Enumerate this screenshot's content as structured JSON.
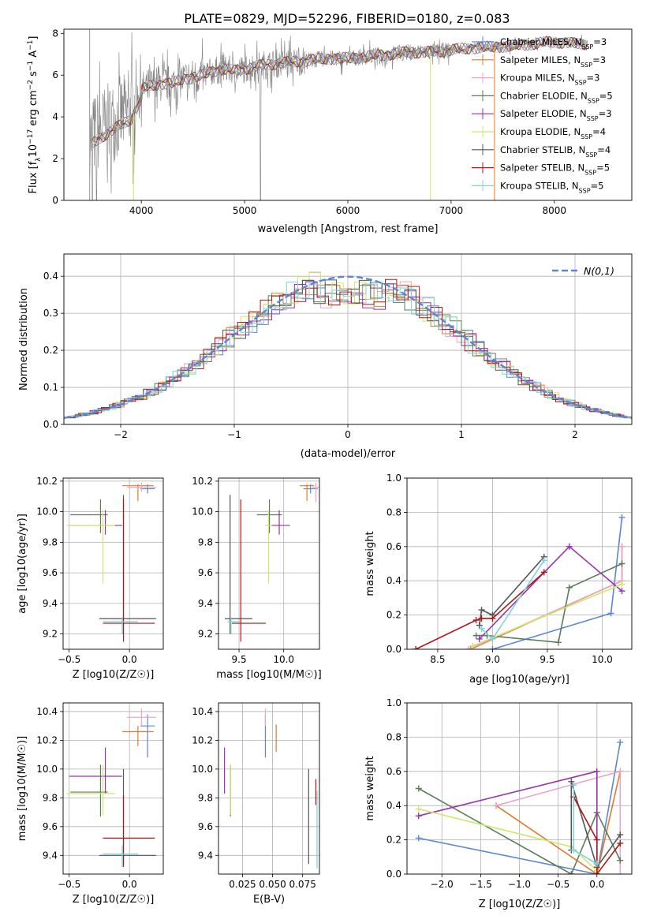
{
  "figure": {
    "title": "PLATE=0829, MJD=52296, FIBERID=0180, z=0.083"
  },
  "colors": {
    "Chabrier MILES": "#5b86d6",
    "Salpeter MILES": "#e07b2a",
    "Kroupa MILES": "#e8a6c9",
    "Chabrier ELODIE": "#5a7d5a",
    "Salpeter ELODIE": "#9a31b0",
    "Kroupa ELODIE": "#cfe86a",
    "Chabrier STELIB": "#555555",
    "Salpeter STELIB": "#b01818",
    "Kroupa STELIB": "#7fd3d8",
    "data": "#808080",
    "gaussian": "#5b86d6"
  },
  "chart_data": [
    {
      "id": "spectrum",
      "type": "line",
      "title": "PLATE=0829, MJD=52296, FIBERID=0180, z=0.083",
      "xlabel": "wavelength [Angstrom, rest frame]",
      "ylabel_parts": [
        "Flux [f",
        "λ",
        "10",
        "−17",
        " erg cm",
        "−2",
        " s",
        "−1",
        " A",
        "−1",
        "]"
      ],
      "xlim": [
        3250,
        8750
      ],
      "ylim": [
        0,
        8.2
      ],
      "xticks": [
        4000,
        5000,
        6000,
        7000,
        8000
      ],
      "yticks": [
        0,
        2,
        4,
        6,
        8
      ],
      "continuum": {
        "x": [
          3500,
          3600,
          3700,
          3800,
          3900,
          4000,
          4100,
          4200,
          4300,
          4400,
          4500,
          4600,
          4700,
          4800,
          4900,
          5000,
          5200,
          5400,
          5600,
          5800,
          6000,
          6200,
          6400,
          6600,
          6800,
          7000,
          7200,
          7400,
          7600,
          7800,
          8000,
          8200,
          8300
        ],
        "y": [
          3.0,
          3.4,
          3.7,
          4.0,
          4.3,
          5.3,
          5.5,
          5.6,
          5.6,
          5.8,
          5.9,
          6.0,
          6.2,
          6.3,
          6.2,
          6.3,
          6.5,
          6.6,
          6.7,
          6.8,
          6.8,
          6.9,
          7.0,
          7.1,
          7.1,
          7.2,
          7.3,
          7.35,
          7.4,
          7.5,
          7.6,
          7.5,
          7.5
        ]
      },
      "legend": [
        {
          "name": "Chabrier MILES",
          "nssp": "3"
        },
        {
          "name": "Salpeter MILES",
          "nssp": "3"
        },
        {
          "name": "Kroupa MILES",
          "nssp": "3"
        },
        {
          "name": "Chabrier ELODIE",
          "nssp": "5"
        },
        {
          "name": "Salpeter ELODIE",
          "nssp": "3"
        },
        {
          "name": "Kroupa ELODIE",
          "nssp": "4"
        },
        {
          "name": "Chabrier STELIB",
          "nssp": "4"
        },
        {
          "name": "Salpeter STELIB",
          "nssp": "5"
        },
        {
          "name": "Kroupa STELIB",
          "nssp": "5"
        }
      ],
      "legend_placement": "right"
    },
    {
      "id": "residuals",
      "type": "histogram",
      "xlabel": "(data-model)/error",
      "ylabel": "Normed distribution",
      "xlim": [
        -2.5,
        2.5
      ],
      "ylim": [
        0,
        0.46
      ],
      "xticks": [
        -2,
        -1,
        0,
        1,
        2
      ],
      "yticks": [
        0.0,
        0.1,
        0.2,
        0.3,
        0.4
      ],
      "grid": true,
      "legend_label": "N(0,1)",
      "legend_placement": "top-right",
      "bin_width": 0.1
    },
    {
      "id": "age-vs-Z",
      "type": "errorbar",
      "xlabel": "Z [log10(Z/Z☉)]",
      "ylabel": "age  [log10(age/yr)]",
      "xlim": [
        -0.55,
        0.28
      ],
      "ylim": [
        9.1,
        10.22
      ],
      "xticks": [
        -0.5,
        0.0
      ],
      "yticks": [
        9.2,
        9.4,
        9.6,
        9.8,
        10.0,
        10.2
      ],
      "grid": true,
      "points": [
        {
          "model": "Chabrier MILES",
          "x": 0.15,
          "xerr": [
            0.06,
            0.06
          ],
          "y": 10.15,
          "yerr": [
            0.03,
            0.03
          ]
        },
        {
          "model": "Salpeter MILES",
          "x": 0.07,
          "xerr": [
            0.13,
            0.13
          ],
          "y": 10.17,
          "yerr": [
            0.1,
            0.01
          ]
        },
        {
          "model": "Kroupa MILES",
          "x": 0.1,
          "xerr": [
            0.12,
            0.12
          ],
          "y": 10.16,
          "yerr": [
            0.03,
            0.03
          ]
        },
        {
          "model": "Chabrier ELODIE",
          "x": -0.24,
          "xerr": [
            0.25,
            0.06
          ],
          "y": 9.98,
          "yerr": [
            0.12,
            0.1
          ]
        },
        {
          "model": "Salpeter ELODIE",
          "x": -0.2,
          "xerr": [
            0.3,
            0.14
          ],
          "y": 9.91,
          "yerr": [
            0.06,
            0.1
          ]
        },
        {
          "model": "Kroupa ELODIE",
          "x": -0.22,
          "xerr": [
            0.3,
            0.1
          ],
          "y": 9.91,
          "yerr": [
            0.38,
            0.1
          ]
        },
        {
          "model": "Chabrier STELIB",
          "x": -0.05,
          "xerr": [
            0.2,
            0.27
          ],
          "y": 9.3,
          "yerr": [
            0.1,
            0.81
          ]
        },
        {
          "model": "Salpeter STELIB",
          "x": -0.05,
          "xerr": [
            0.17,
            0.26
          ],
          "y": 9.27,
          "yerr": [
            0.12,
            0.81
          ]
        },
        {
          "model": "Kroupa STELIB",
          "x": -0.06,
          "xerr": [
            0.16,
            0.13
          ],
          "y": 9.28,
          "yerr": [
            0.08,
            0.03
          ]
        }
      ]
    },
    {
      "id": "age-vs-mass",
      "type": "errorbar",
      "xlabel": "mass [log10(M/M☉)]",
      "ylabel": "",
      "xlim": [
        9.27,
        10.4
      ],
      "ylim": [
        9.1,
        10.22
      ],
      "xticks": [
        9.5,
        10.0
      ],
      "yticks": [
        9.2,
        9.4,
        9.6,
        9.8,
        10.0,
        10.2
      ],
      "grid": true,
      "points": [
        {
          "model": "Chabrier MILES",
          "x": 10.3,
          "xerr": [
            0.08,
            0.08
          ],
          "y": 10.15,
          "yerr": [
            0.03,
            0.03
          ]
        },
        {
          "model": "Salpeter MILES",
          "x": 10.26,
          "xerr": [
            0.08,
            0.08
          ],
          "y": 10.17,
          "yerr": [
            0.1,
            0.01
          ]
        },
        {
          "model": "Kroupa MILES",
          "x": 10.36,
          "xerr": [
            0.04,
            0.04
          ],
          "y": 10.16,
          "yerr": [
            0.1,
            0.03
          ]
        },
        {
          "model": "Chabrier ELODIE",
          "x": 9.84,
          "xerr": [
            0.14,
            0.14
          ],
          "y": 9.98,
          "yerr": [
            0.12,
            0.1
          ]
        },
        {
          "model": "Salpeter ELODIE",
          "x": 9.95,
          "xerr": [
            0.12,
            0.12
          ],
          "y": 9.91,
          "yerr": [
            0.06,
            0.1
          ]
        },
        {
          "model": "Kroupa ELODIE",
          "x": 9.83,
          "xerr": [
            0.04,
            0.04
          ],
          "y": 9.91,
          "yerr": [
            0.38,
            0.1
          ]
        },
        {
          "model": "Chabrier STELIB",
          "x": 9.4,
          "xerr": [
            0.06,
            0.25
          ],
          "y": 9.3,
          "yerr": [
            0.1,
            0.81
          ]
        },
        {
          "model": "Salpeter STELIB",
          "x": 9.52,
          "xerr": [
            0.1,
            0.28
          ],
          "y": 9.27,
          "yerr": [
            0.12,
            0.81
          ]
        },
        {
          "model": "Kroupa STELIB",
          "x": 9.41,
          "xerr": [
            0.04,
            0.1
          ],
          "y": 9.28,
          "yerr": [
            0.08,
            0.03
          ]
        }
      ]
    },
    {
      "id": "weight-vs-age",
      "type": "line",
      "xlabel": "age  [log10(age/yr)]",
      "ylabel": "mass weight",
      "xlim": [
        8.22,
        10.27
      ],
      "ylim": [
        0,
        1.0
      ],
      "xticks": [
        8.5,
        9.0,
        9.5,
        10.0
      ],
      "yticks": [
        0.0,
        0.2,
        0.4,
        0.6,
        0.8,
        1.0
      ],
      "grid": true,
      "series": [
        {
          "name": "Chabrier MILES",
          "x": [
            9.0,
            10.08,
            10.18
          ],
          "y": [
            0.0,
            0.21,
            0.77
          ]
        },
        {
          "name": "Salpeter MILES",
          "x": [
            8.8,
            10.18,
            10.18
          ],
          "y": [
            0.0,
            0.4,
            0.6
          ]
        },
        {
          "name": "Kroupa MILES",
          "x": [
            8.78,
            10.18,
            10.18
          ],
          "y": [
            0.0,
            0.4,
            0.6
          ]
        },
        {
          "name": "Chabrier ELODIE",
          "x": [
            8.85,
            8.95,
            9.6,
            9.7,
            10.18
          ],
          "y": [
            0.08,
            0.08,
            0.04,
            0.36,
            0.5
          ]
        },
        {
          "name": "Salpeter ELODIE",
          "x": [
            8.88,
            9.7,
            10.18
          ],
          "y": [
            0.06,
            0.6,
            0.34
          ]
        },
        {
          "name": "Kroupa ELODIE",
          "x": [
            8.82,
            10.18
          ],
          "y": [
            0.02,
            0.38
          ]
        },
        {
          "name": "Chabrier STELIB",
          "x": [
            8.88,
            8.9,
            9.0,
            9.47
          ],
          "y": [
            0.14,
            0.23,
            0.2,
            0.54
          ]
        },
        {
          "name": "Salpeter STELIB",
          "x": [
            8.3,
            8.85,
            8.9,
            9.0,
            9.47
          ],
          "y": [
            0.0,
            0.17,
            0.18,
            0.18,
            0.45
          ]
        },
        {
          "name": "Kroupa STELIB",
          "x": [
            8.9,
            9.0,
            9.47
          ],
          "y": [
            0.12,
            0.06,
            0.52
          ]
        }
      ]
    },
    {
      "id": "mass-vs-Z",
      "type": "errorbar",
      "xlabel": "Z [log10(Z/Z☉)]",
      "ylabel": "mass [log10(M/M☉)]",
      "xlim": [
        -0.55,
        0.28
      ],
      "ylim": [
        9.27,
        10.46
      ],
      "xticks": [
        -0.5,
        0.0
      ],
      "yticks": [
        9.4,
        9.6,
        9.8,
        10.0,
        10.2,
        10.4
      ],
      "grid": true,
      "points": [
        {
          "model": "Chabrier MILES",
          "x": 0.15,
          "xerr": [
            0.06,
            0.06
          ],
          "y": 10.3,
          "yerr": [
            0.22,
            0.08
          ]
        },
        {
          "model": "Salpeter MILES",
          "x": 0.07,
          "xerr": [
            0.13,
            0.13
          ],
          "y": 10.26,
          "yerr": [
            0.1,
            0.04
          ]
        },
        {
          "model": "Kroupa MILES",
          "x": 0.1,
          "xerr": [
            0.12,
            0.12
          ],
          "y": 10.36,
          "yerr": [
            0.06,
            0.06
          ]
        },
        {
          "model": "Chabrier ELODIE",
          "x": -0.24,
          "xerr": [
            0.25,
            0.06
          ],
          "y": 9.84,
          "yerr": [
            0.17,
            0.19
          ]
        },
        {
          "model": "Salpeter ELODIE",
          "x": -0.2,
          "xerr": [
            0.3,
            0.14
          ],
          "y": 9.95,
          "yerr": [
            0.12,
            0.2
          ]
        },
        {
          "model": "Kroupa ELODIE",
          "x": -0.22,
          "xerr": [
            0.3,
            0.1
          ],
          "y": 9.83,
          "yerr": [
            0.15,
            0.2
          ]
        },
        {
          "model": "Chabrier STELIB",
          "x": -0.05,
          "xerr": [
            0.2,
            0.27
          ],
          "y": 9.4,
          "yerr": [
            0.07,
            0.6
          ]
        },
        {
          "model": "Salpeter STELIB",
          "x": -0.05,
          "xerr": [
            0.17,
            0.26
          ],
          "y": 9.52,
          "yerr": [
            0.2,
            0.3
          ]
        },
        {
          "model": "Kroupa STELIB",
          "x": -0.06,
          "xerr": [
            0.16,
            0.13
          ],
          "y": 9.41,
          "yerr": [
            0.09,
            0.06
          ]
        }
      ]
    },
    {
      "id": "mass-vs-EBV",
      "type": "errorbar",
      "xlabel": "E(B-V)",
      "ylabel": "",
      "xlim": [
        0.005,
        0.089
      ],
      "ylim": [
        9.27,
        10.46
      ],
      "xticks": [
        0.025,
        0.05,
        0.075
      ],
      "yticks": [
        9.4,
        9.6,
        9.8,
        10.0,
        10.2,
        10.4
      ],
      "grid": true,
      "points": [
        {
          "model": "Chabrier MILES",
          "x": 0.044,
          "y": 10.3,
          "yerr": [
            0.22,
            0.08
          ]
        },
        {
          "model": "Salpeter MILES",
          "x": 0.053,
          "y": 10.26,
          "yerr": [
            0.14,
            0.05
          ]
        },
        {
          "model": "Kroupa MILES",
          "x": 0.044,
          "y": 10.36,
          "yerr": [
            0.06,
            0.06
          ]
        },
        {
          "model": "Chabrier ELODIE",
          "x": 0.015,
          "y": 9.84,
          "yerr": [
            0.17,
            0.19
          ]
        },
        {
          "model": "Salpeter ELODIE",
          "x": 0.01,
          "y": 9.95,
          "yerr": [
            0.12,
            0.2
          ]
        },
        {
          "model": "Kroupa ELODIE",
          "x": 0.015,
          "y": 9.83,
          "yerr": [
            0.15,
            0.2
          ]
        },
        {
          "model": "Chabrier STELIB",
          "x": 0.08,
          "y": 9.67,
          "yerr": [
            0.33,
            0.33
          ]
        },
        {
          "model": "Salpeter STELIB",
          "x": 0.086,
          "y": 9.85,
          "yerr": [
            0.1,
            0.08
          ]
        },
        {
          "model": "Kroupa STELIB",
          "x": 0.087,
          "y": 9.58,
          "yerr": [
            0.27,
            0.27
          ]
        }
      ]
    },
    {
      "id": "weight-vs-Z",
      "type": "line",
      "xlabel": "Z [log10(Z/Z☉)]",
      "ylabel": "mass weight",
      "xlim": [
        -2.45,
        0.45
      ],
      "ylim": [
        0,
        1.0
      ],
      "xticks": [
        -2.0,
        -1.5,
        -1.0,
        -0.5,
        0.0
      ],
      "yticks": [
        0.0,
        0.2,
        0.4,
        0.6,
        0.8,
        1.0
      ],
      "grid": true,
      "series": [
        {
          "name": "Chabrier MILES",
          "x": [
            -2.3,
            0.0,
            0.3
          ],
          "y": [
            0.21,
            0.0,
            0.77
          ]
        },
        {
          "name": "Salpeter MILES",
          "x": [
            -1.3,
            0.0,
            0.3
          ],
          "y": [
            0.4,
            0.0,
            0.6
          ]
        },
        {
          "name": "Kroupa MILES",
          "x": [
            -1.3,
            0.3,
            0.3
          ],
          "y": [
            0.4,
            0.6,
            0.0
          ]
        },
        {
          "name": "Chabrier ELODIE",
          "x": [
            -2.3,
            -0.33,
            0.0,
            0.3
          ],
          "y": [
            0.5,
            0.0,
            0.36,
            0.08
          ]
        },
        {
          "name": "Salpeter ELODIE",
          "x": [
            -2.3,
            0.0,
            0.0
          ],
          "y": [
            0.34,
            0.6,
            0.06
          ]
        },
        {
          "name": "Kroupa ELODIE",
          "x": [
            -2.3,
            -0.33,
            0.0
          ],
          "y": [
            0.38,
            0.16,
            0.02
          ]
        },
        {
          "name": "Chabrier STELIB",
          "x": [
            -0.33,
            -0.33,
            0.0,
            0.3
          ],
          "y": [
            0.14,
            0.54,
            0.04,
            0.23
          ]
        },
        {
          "name": "Salpeter STELIB",
          "x": [
            -0.3,
            0.0,
            0.0,
            0.3
          ],
          "y": [
            0.45,
            0.2,
            0.0,
            0.18
          ]
        },
        {
          "name": "Kroupa STELIB",
          "x": [
            -0.3,
            -0.3,
            0.0
          ],
          "y": [
            0.52,
            0.14,
            0.06
          ]
        }
      ]
    }
  ]
}
